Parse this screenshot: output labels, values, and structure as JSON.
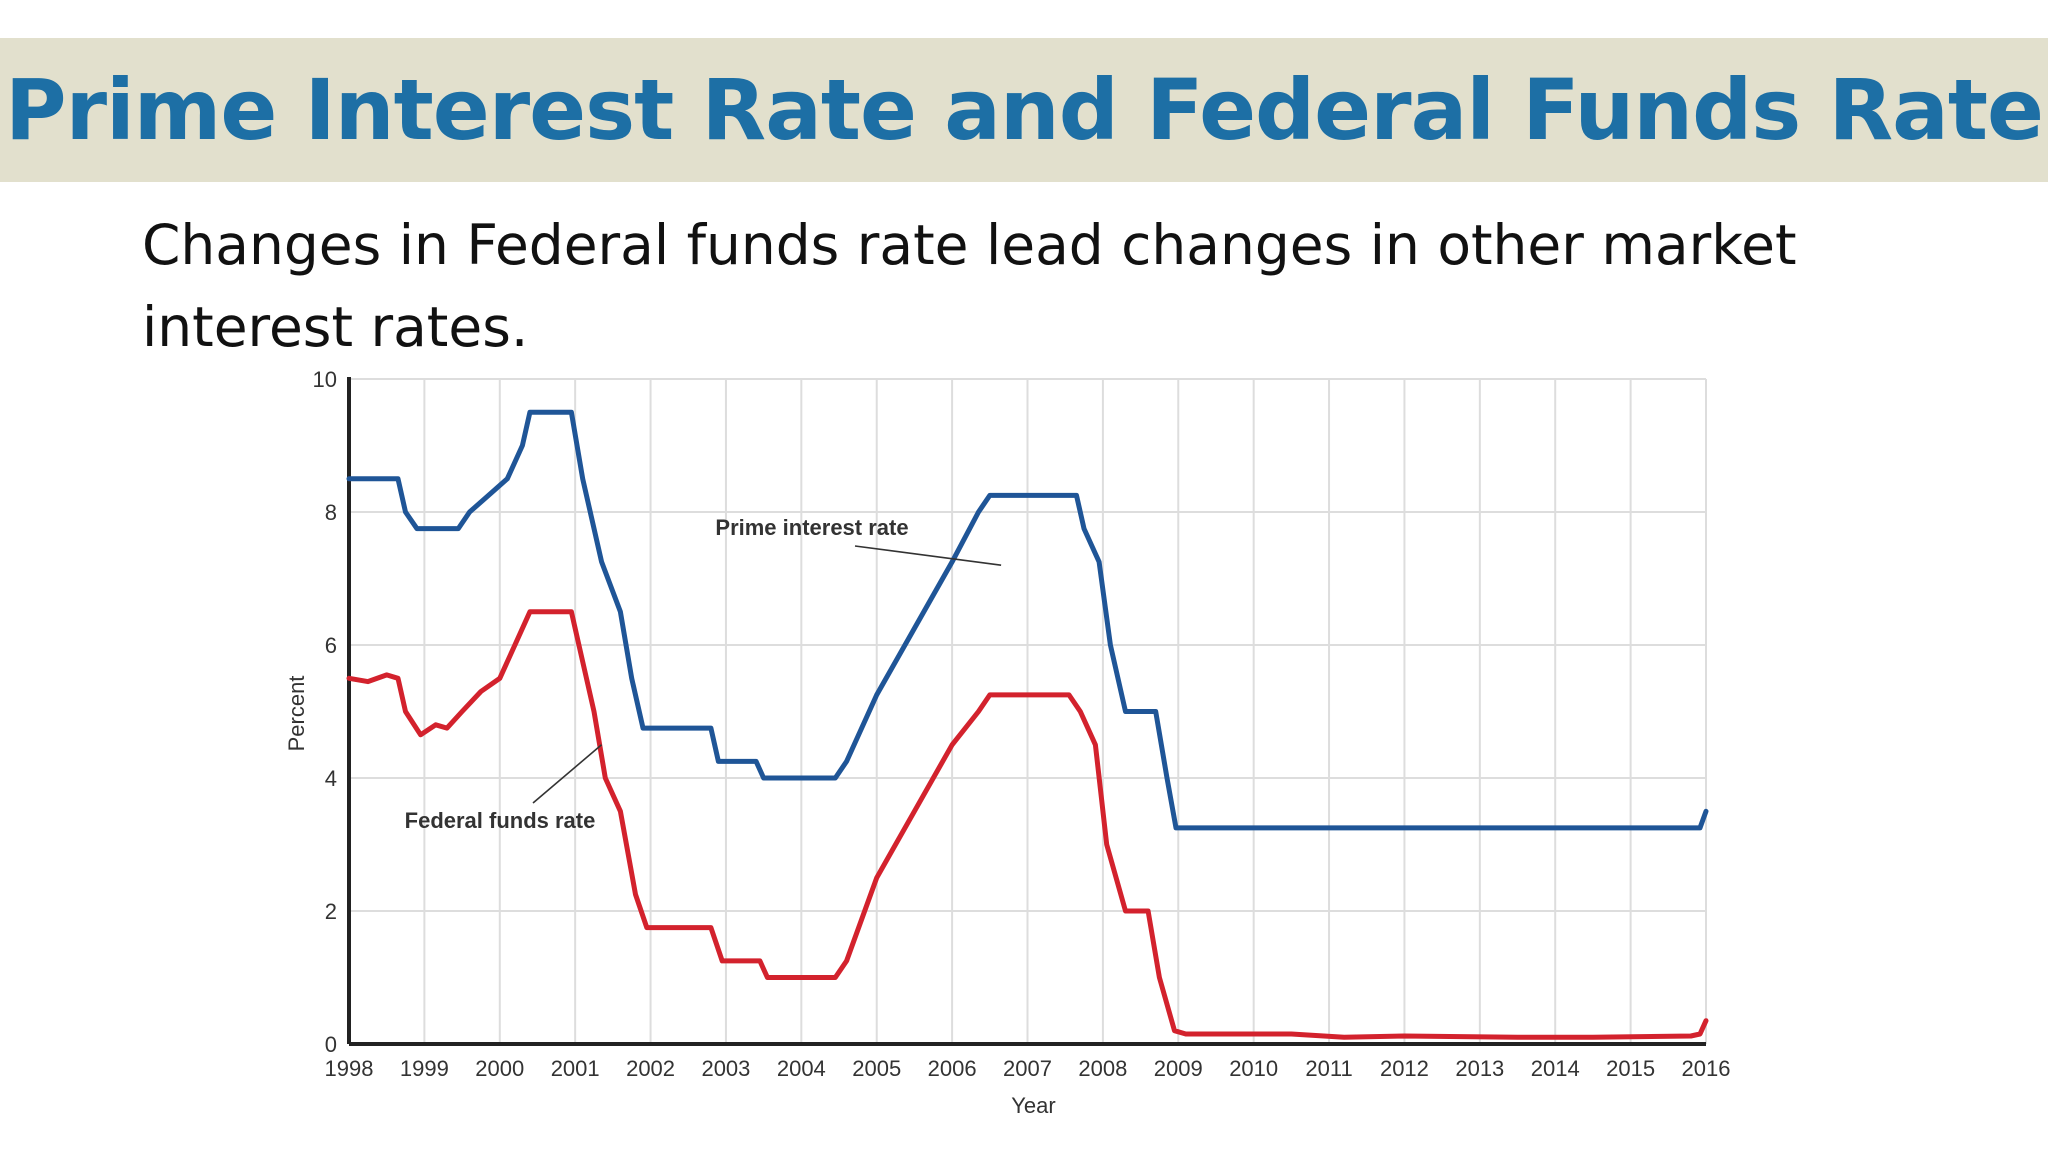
{
  "slide": {
    "title": "Prime Interest Rate and Federal Funds Rate",
    "subtitle": "Changes in Federal funds rate lead changes in other market interest rates."
  },
  "chart_data": {
    "type": "line",
    "xlabel": "Year",
    "ylabel": "Percent",
    "xlim": [
      1998,
      2016
    ],
    "ylim": [
      0,
      10
    ],
    "x_ticks": [
      "1998",
      "1999",
      "2000",
      "2001",
      "2002",
      "2003",
      "2004",
      "2005",
      "2006",
      "2007",
      "2008",
      "2009",
      "2010",
      "2011",
      "2012",
      "2013",
      "2014",
      "2015",
      "2016"
    ],
    "y_ticks": [
      "0",
      "2",
      "4",
      "6",
      "8",
      "10"
    ],
    "grid": true,
    "colors": {
      "prime": "#1f5597",
      "federal": "#d3222d",
      "grid": "#dddddd",
      "axis": "#222222"
    },
    "series": [
      {
        "name": "Prime interest rate",
        "color": "#1f5597",
        "points": [
          [
            1998.0,
            8.5
          ],
          [
            1998.65,
            8.5
          ],
          [
            1998.75,
            8.0
          ],
          [
            1998.9,
            7.75
          ],
          [
            1999.45,
            7.75
          ],
          [
            1999.6,
            8.0
          ],
          [
            1999.85,
            8.25
          ],
          [
            2000.1,
            8.5
          ],
          [
            2000.3,
            9.0
          ],
          [
            2000.4,
            9.5
          ],
          [
            2000.95,
            9.5
          ],
          [
            2001.1,
            8.5
          ],
          [
            2001.35,
            7.25
          ],
          [
            2001.6,
            6.5
          ],
          [
            2001.75,
            5.5
          ],
          [
            2001.9,
            4.75
          ],
          [
            2002.8,
            4.75
          ],
          [
            2002.9,
            4.25
          ],
          [
            2003.4,
            4.25
          ],
          [
            2003.5,
            4.0
          ],
          [
            2004.45,
            4.0
          ],
          [
            2004.6,
            4.25
          ],
          [
            2005.0,
            5.25
          ],
          [
            2005.5,
            6.25
          ],
          [
            2006.0,
            7.25
          ],
          [
            2006.35,
            8.0
          ],
          [
            2006.5,
            8.25
          ],
          [
            2007.65,
            8.25
          ],
          [
            2007.75,
            7.75
          ],
          [
            2007.95,
            7.25
          ],
          [
            2008.1,
            6.0
          ],
          [
            2008.3,
            5.0
          ],
          [
            2008.7,
            5.0
          ],
          [
            2008.85,
            4.0
          ],
          [
            2008.97,
            3.25
          ],
          [
            2015.92,
            3.25
          ],
          [
            2016.0,
            3.5
          ]
        ]
      },
      {
        "name": "Federal funds rate",
        "color": "#d3222d",
        "points": [
          [
            1998.0,
            5.5
          ],
          [
            1998.25,
            5.45
          ],
          [
            1998.5,
            5.55
          ],
          [
            1998.65,
            5.5
          ],
          [
            1998.75,
            5.0
          ],
          [
            1998.95,
            4.65
          ],
          [
            1999.15,
            4.8
          ],
          [
            1999.3,
            4.75
          ],
          [
            1999.5,
            5.0
          ],
          [
            1999.75,
            5.3
          ],
          [
            2000.0,
            5.5
          ],
          [
            2000.2,
            6.0
          ],
          [
            2000.4,
            6.5
          ],
          [
            2000.95,
            6.5
          ],
          [
            2001.05,
            6.0
          ],
          [
            2001.25,
            5.0
          ],
          [
            2001.4,
            4.0
          ],
          [
            2001.6,
            3.5
          ],
          [
            2001.8,
            2.25
          ],
          [
            2001.95,
            1.75
          ],
          [
            2002.8,
            1.75
          ],
          [
            2002.95,
            1.25
          ],
          [
            2003.45,
            1.25
          ],
          [
            2003.55,
            1.0
          ],
          [
            2004.45,
            1.0
          ],
          [
            2004.6,
            1.25
          ],
          [
            2005.0,
            2.5
          ],
          [
            2005.5,
            3.5
          ],
          [
            2006.0,
            4.5
          ],
          [
            2006.35,
            5.0
          ],
          [
            2006.5,
            5.25
          ],
          [
            2007.55,
            5.25
          ],
          [
            2007.7,
            5.0
          ],
          [
            2007.9,
            4.5
          ],
          [
            2008.05,
            3.0
          ],
          [
            2008.3,
            2.0
          ],
          [
            2008.6,
            2.0
          ],
          [
            2008.75,
            1.0
          ],
          [
            2008.95,
            0.2
          ],
          [
            2009.1,
            0.15
          ],
          [
            2010.5,
            0.15
          ],
          [
            2011.2,
            0.1
          ],
          [
            2012.0,
            0.12
          ],
          [
            2013.5,
            0.1
          ],
          [
            2014.5,
            0.1
          ],
          [
            2015.8,
            0.12
          ],
          [
            2015.92,
            0.15
          ],
          [
            2016.0,
            0.35
          ]
        ]
      }
    ],
    "annotations": [
      {
        "text": "Prime interest rate",
        "series": 0,
        "target": [
          2006.65,
          7.2
        ]
      },
      {
        "text": "Federal funds rate",
        "series": 1,
        "target": [
          2001.35,
          4.5
        ]
      }
    ]
  }
}
